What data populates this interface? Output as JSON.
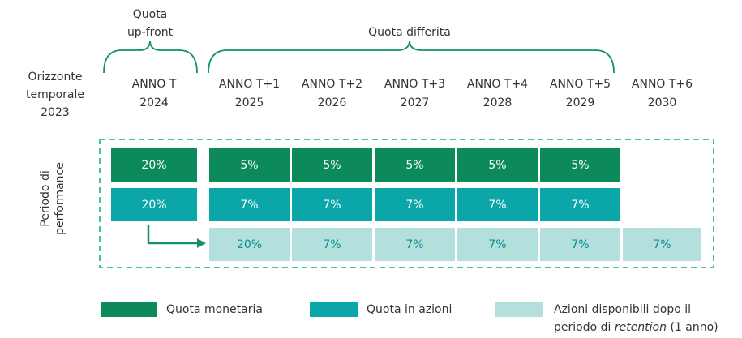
{
  "header": {
    "upfront": [
      "Quota",
      "up-front"
    ],
    "deferred": "Quota differita",
    "horizon": [
      "Orizzonte",
      "temporale",
      "2023"
    ]
  },
  "columns": [
    {
      "label": "ANNO T",
      "year": "2024"
    },
    {
      "label": "ANNO T+1",
      "year": "2025"
    },
    {
      "label": "ANNO T+2",
      "year": "2026"
    },
    {
      "label": "ANNO T+3",
      "year": "2027"
    },
    {
      "label": "ANNO T+4",
      "year": "2028"
    },
    {
      "label": "ANNO T+5",
      "year": "2029"
    },
    {
      "label": "ANNO T+6",
      "year": "2030"
    }
  ],
  "performance_label": [
    "Periodo di",
    "performance"
  ],
  "rows": [
    {
      "cells": [
        "20%",
        "5%",
        "5%",
        "5%",
        "5%",
        "5%",
        null
      ]
    },
    {
      "cells": [
        "20%",
        "7%",
        "7%",
        "7%",
        "7%",
        "7%",
        null
      ]
    },
    {
      "cells": [
        null,
        "20%",
        "7%",
        "7%",
        "7%",
        "7%",
        "7%"
      ]
    }
  ],
  "legend": [
    {
      "label": [
        "Quota monetaria"
      ]
    },
    {
      "label": [
        "Quota in azioni"
      ]
    },
    {
      "label": [
        "Azioni disponibili dopo il",
        "periodo di ",
        "retention",
        " (1 anno)"
      ]
    }
  ]
}
